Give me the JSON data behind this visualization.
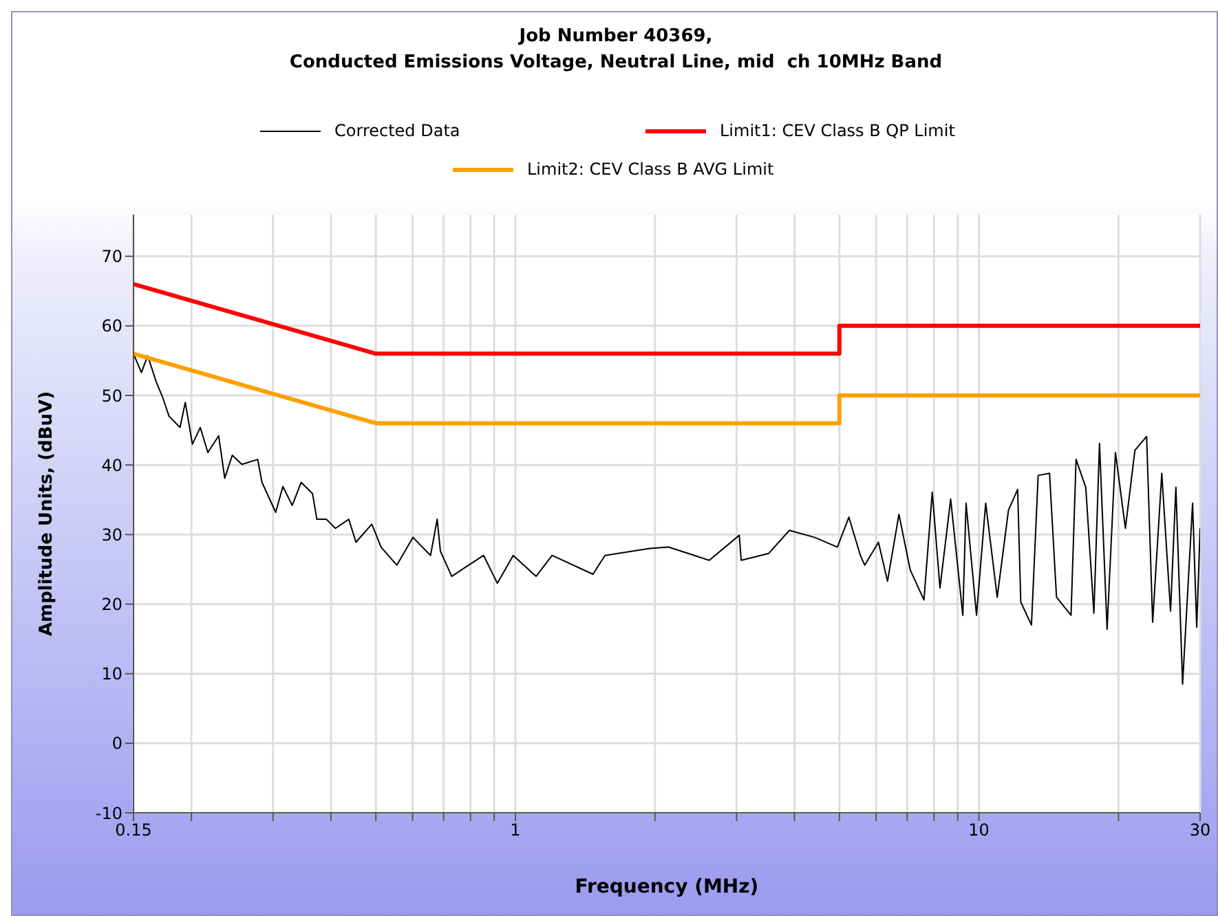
{
  "chart_data": {
    "type": "line",
    "title": "Job Number 40369,\nConducted Emissions Voltage, Neutral Line, mid  ch 10MHz Band",
    "xlabel": "Frequency (MHz)",
    "ylabel": "Amplitude Units, (dBuV)",
    "log": "x",
    "grid": true,
    "legend": "top",
    "xlim": [
      0.15,
      30
    ],
    "xticks": [
      0.15,
      {
        "value": 0.2,
        "label": null
      },
      {
        "value": 0.3,
        "label": null
      },
      {
        "value": 0.4,
        "label": null
      },
      {
        "value": 0.5,
        "label": null
      },
      {
        "value": 0.6,
        "label": null
      },
      {
        "value": 0.7,
        "label": null
      },
      {
        "value": 0.8,
        "label": null
      },
      {
        "value": 0.9,
        "label": null
      },
      1,
      {
        "value": 2,
        "label": null
      },
      {
        "value": 3,
        "label": null
      },
      {
        "value": 4,
        "label": null
      },
      {
        "value": 5,
        "label": null
      },
      {
        "value": 6,
        "label": null
      },
      {
        "value": 7,
        "label": null
      },
      {
        "value": 8,
        "label": null
      },
      {
        "value": 9,
        "label": null
      },
      10,
      {
        "value": 20,
        "label": null
      },
      30
    ],
    "ylim": [
      -10,
      76
    ],
    "yticks": [
      -10,
      0,
      10,
      20,
      30,
      40,
      50,
      60,
      70
    ],
    "series": [
      {
        "name": "Corrected Data",
        "color": "#000000",
        "x": [
          0.15,
          0.156,
          0.161,
          0.168,
          0.173,
          0.179,
          0.189,
          0.194,
          0.201,
          0.209,
          0.217,
          0.229,
          0.236,
          0.245,
          0.257,
          0.278,
          0.284,
          0.304,
          0.315,
          0.33,
          0.345,
          0.365,
          0.373,
          0.391,
          0.409,
          0.437,
          0.453,
          0.49,
          0.513,
          0.555,
          0.601,
          0.656,
          0.678,
          0.689,
          0.729,
          0.78,
          0.854,
          0.914,
          0.989,
          1.108,
          1.2,
          1.47,
          1.56,
          1.95,
          2.14,
          2.62,
          3.04,
          3.07,
          3.52,
          3.9,
          4.42,
          4.95,
          5.24,
          5.55,
          5.67,
          6.07,
          6.35,
          6.72,
          7.11,
          7.61,
          7.93,
          8.24,
          8.69,
          9.23,
          9.38,
          9.88,
          10.34,
          10.95,
          11.58,
          12.12,
          12.31,
          12.98,
          13.42,
          14.2,
          14.7,
          15.8,
          16.2,
          17.0,
          17.7,
          18.2,
          18.9,
          19.7,
          20.7,
          21.7,
          23.0,
          23.7,
          24.8,
          25.9,
          26.6,
          27.5,
          28.9,
          29.5,
          30
        ],
        "values": [
          56,
          53.3,
          55.7,
          51.9,
          49.9,
          47,
          45.4,
          49,
          43,
          45.4,
          41.8,
          44.2,
          38.1,
          41.4,
          40.1,
          40.8,
          37.5,
          33.2,
          36.9,
          34.2,
          37.5,
          35.9,
          32.2,
          32.2,
          30.9,
          32.2,
          28.9,
          31.5,
          28.2,
          25.6,
          29.6,
          27,
          32.2,
          27.6,
          24,
          25.3,
          27,
          23,
          27,
          24,
          27,
          24.3,
          27,
          28,
          28.2,
          26.3,
          29.9,
          26.3,
          27.3,
          30.6,
          29.6,
          28.2,
          32.5,
          27,
          25.6,
          28.9,
          23.3,
          32.9,
          24.9,
          20.6,
          36.1,
          22.3,
          35.1,
          18.4,
          34.5,
          18.4,
          34.5,
          21,
          33.5,
          36.5,
          20.3,
          17,
          38.5,
          38.8,
          21,
          18.4,
          40.8,
          36.8,
          18.7,
          43.1,
          16.4,
          41.8,
          30.9,
          42.1,
          44.1,
          17.4,
          38.8,
          19,
          36.8,
          8.5,
          34.5,
          16.7,
          30.9
        ]
      },
      {
        "name": "Limit1: CEV Class B QP Limit",
        "color": "#ff0000",
        "x": [
          0.15,
          0.5,
          5,
          5,
          30
        ],
        "values": [
          66,
          56,
          56,
          60,
          60
        ]
      },
      {
        "name": "Limit2: CEV Class B AVG Limit",
        "color": "#ffa000",
        "x": [
          0.15,
          0.5,
          5,
          5,
          30
        ],
        "values": [
          56,
          46,
          46,
          50,
          50
        ]
      }
    ]
  }
}
